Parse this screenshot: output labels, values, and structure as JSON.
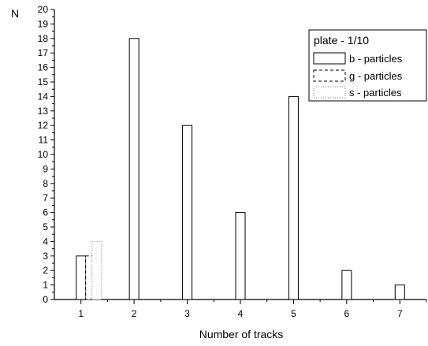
{
  "chart_data": {
    "type": "bar",
    "title": "",
    "xlabel": "Number of tracks",
    "ylabel": "N",
    "ylim": [
      0,
      20
    ],
    "xlim": [
      0.5,
      7.5
    ],
    "x_ticks": [
      "1",
      "2",
      "3",
      "4",
      "5",
      "6",
      "7"
    ],
    "y_ticks": [
      "0",
      "1",
      "2",
      "3",
      "4",
      "5",
      "6",
      "7",
      "8",
      "9",
      "10",
      "11",
      "12",
      "13",
      "14",
      "15",
      "16",
      "17",
      "18",
      "19",
      "20"
    ],
    "series": [
      {
        "name": "b - particles",
        "line_style": "solid",
        "points": [
          {
            "x": 1,
            "y": 3
          },
          {
            "x": 2,
            "y": 18
          },
          {
            "x": 3,
            "y": 12
          },
          {
            "x": 4,
            "y": 6
          },
          {
            "x": 5,
            "y": 14
          },
          {
            "x": 6,
            "y": 2
          },
          {
            "x": 7,
            "y": 1
          }
        ]
      },
      {
        "name": "g - particles",
        "line_style": "dashed",
        "points": [
          {
            "x": 1,
            "y": 3
          }
        ]
      },
      {
        "name": "s - particles",
        "line_style": "dotted",
        "points": [
          {
            "x": 1,
            "y": 4
          }
        ]
      }
    ],
    "legend": {
      "title": "plate - 1/10",
      "position": "top-right"
    },
    "grid": false,
    "colors": {
      "bar_stroke": "#000000",
      "bar_fill": "#ffffff",
      "dotted_stroke": "#777777"
    }
  }
}
